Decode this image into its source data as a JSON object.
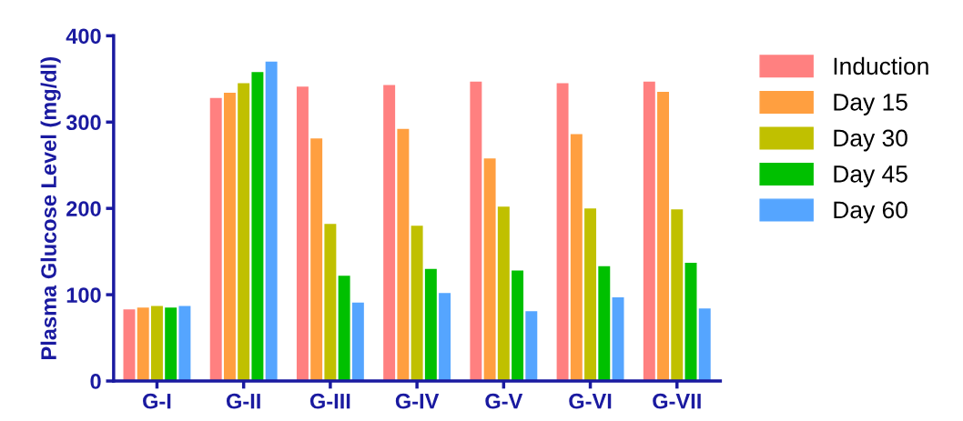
{
  "chart_data": {
    "type": "bar",
    "ylabel": "Plasma Glucose Level (mg/dl)",
    "categories": [
      "G-I",
      "G-II",
      "G-III",
      "G-IV",
      "G-V",
      "G-VI",
      "G-VII"
    ],
    "series": [
      {
        "name": "Induction",
        "color": "#ff8080",
        "values": [
          83,
          328,
          341,
          343,
          347,
          345,
          347
        ]
      },
      {
        "name": "Day 15",
        "color": "#ff9f40",
        "values": [
          85,
          334,
          281,
          292,
          258,
          286,
          335
        ]
      },
      {
        "name": "Day 30",
        "color": "#c0c000",
        "values": [
          87,
          345,
          182,
          180,
          202,
          200,
          199
        ]
      },
      {
        "name": "Day 45",
        "color": "#00c000",
        "values": [
          85,
          358,
          122,
          130,
          128,
          133,
          137
        ]
      },
      {
        "name": "Day 60",
        "color": "#55a5ff",
        "values": [
          87,
          370,
          91,
          102,
          81,
          97,
          84
        ]
      }
    ],
    "ylim": [
      0,
      400
    ],
    "yticks": [
      0,
      100,
      200,
      300,
      400
    ],
    "grid": false,
    "legend": "right"
  }
}
